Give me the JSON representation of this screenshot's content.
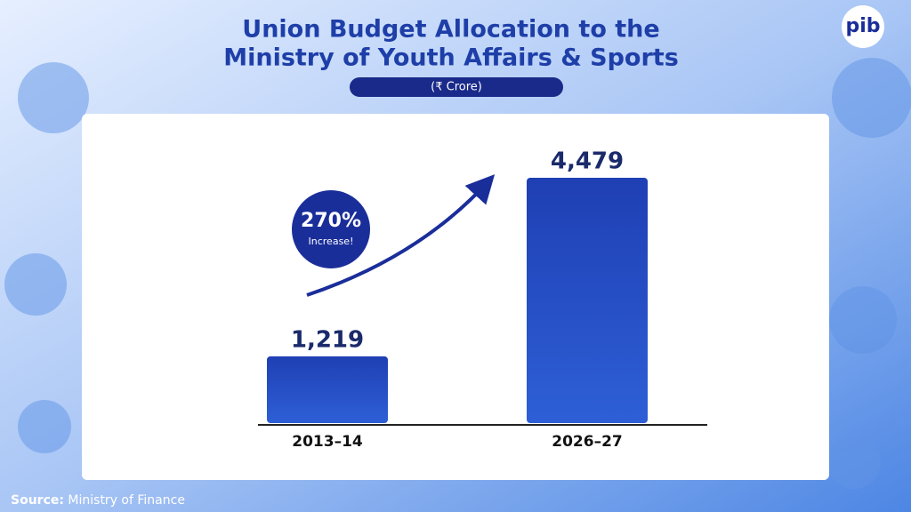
{
  "chart_data": {
    "type": "bar",
    "title": [
      "Union Budget Allocation to the",
      "Ministry of Youth Affairs & Sports"
    ],
    "subtitle": "(₹ Crore)",
    "categories": [
      "2013–14",
      "2026–27"
    ],
    "values": [
      1219,
      4479
    ],
    "value_labels": [
      "1,219",
      "4,479"
    ],
    "color": "#1f3fb4",
    "annotation": [
      "270%",
      "Increase!"
    ],
    "source_label": "Source:",
    "source": "Ministry of Finance",
    "logo": "pib"
  }
}
